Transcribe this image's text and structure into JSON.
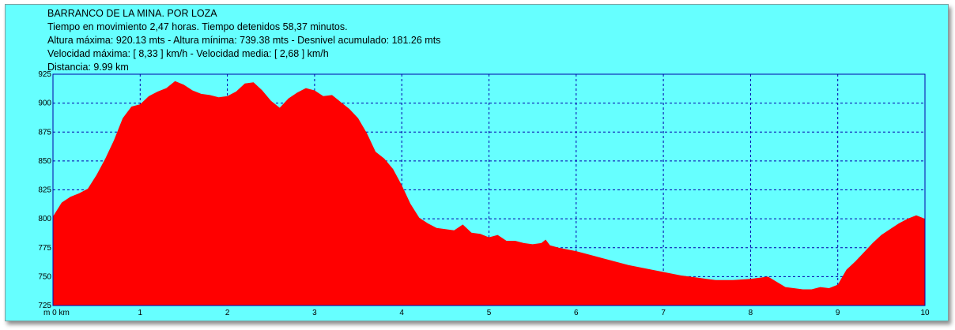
{
  "header": {
    "title": "BARRANCO DE LA MINA. POR LOZA",
    "line1": "Tiempo en movimiento 2,47 horas. Tiempo detenidos 58,37 minutos.",
    "line2": "Altura máxima: 920.13 mts - Altura mínima: 739.38 mts - Desnivel acumulado: 181.26 mts",
    "line3": "Velocidad máxima:  [ 8,33 ] km/h - Velocidad media: [ 2,68 ] km/h",
    "line4": "Distancia: 9.99 km"
  },
  "colors": {
    "background": "#66ffff",
    "fill": "#ff0000",
    "grid": "#0000aa",
    "axis": "#0000aa"
  },
  "chart_data": {
    "type": "area",
    "x_unit_label": "m 0 km",
    "xlim": [
      0,
      10
    ],
    "ylim": [
      725,
      925
    ],
    "x_ticks": [
      1,
      2,
      3,
      4,
      5,
      6,
      7,
      8,
      9,
      10
    ],
    "y_ticks": [
      925,
      900,
      875,
      850,
      825,
      800,
      775,
      750,
      725
    ],
    "grid": true,
    "x": [
      0,
      0.1,
      0.2,
      0.3,
      0.4,
      0.5,
      0.6,
      0.7,
      0.8,
      0.9,
      1.0,
      1.1,
      1.2,
      1.3,
      1.4,
      1.5,
      1.6,
      1.7,
      1.8,
      1.9,
      2.0,
      2.1,
      2.2,
      2.3,
      2.4,
      2.5,
      2.6,
      2.7,
      2.8,
      2.9,
      3.0,
      3.1,
      3.2,
      3.3,
      3.4,
      3.5,
      3.6,
      3.7,
      3.8,
      3.9,
      4.0,
      4.1,
      4.2,
      4.3,
      4.4,
      4.5,
      4.6,
      4.7,
      4.8,
      4.9,
      5.0,
      5.1,
      5.2,
      5.3,
      5.4,
      5.5,
      5.6,
      5.65,
      5.7,
      5.8,
      6.0,
      6.2,
      6.4,
      6.6,
      6.8,
      7.0,
      7.2,
      7.4,
      7.6,
      7.8,
      8.0,
      8.2,
      8.4,
      8.6,
      8.7,
      8.8,
      8.9,
      9.0,
      9.1,
      9.2,
      9.3,
      9.4,
      9.5,
      9.6,
      9.7,
      9.8,
      9.9,
      10.0
    ],
    "elevation": [
      802,
      814,
      819,
      822,
      826,
      838,
      852,
      868,
      887,
      897,
      899,
      906,
      910,
      913,
      919,
      916,
      911,
      908,
      907,
      905,
      906,
      910,
      917,
      918,
      911,
      902,
      896,
      904,
      909,
      913,
      911,
      906,
      907,
      901,
      895,
      887,
      874,
      858,
      852,
      843,
      829,
      813,
      801,
      796,
      792,
      791,
      790,
      795,
      788,
      787,
      784,
      786,
      781,
      781,
      779,
      778,
      779,
      782,
      777,
      775,
      772,
      768,
      764,
      760,
      757,
      754,
      751,
      749,
      747,
      747,
      748,
      750,
      741,
      739,
      739,
      741,
      740,
      743,
      756,
      763,
      771,
      779,
      786,
      791,
      796,
      800,
      803,
      800
    ]
  }
}
